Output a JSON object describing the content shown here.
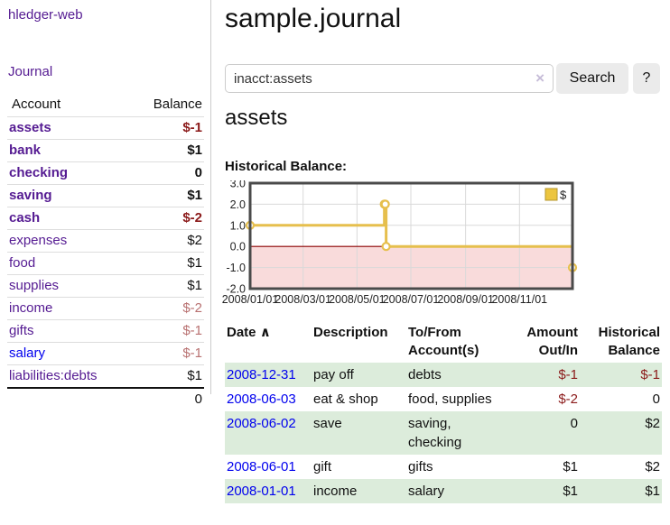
{
  "sidebar": {
    "brand": "hledger-web",
    "nav": {
      "journal": "Journal"
    },
    "accounts_table": {
      "headers": {
        "account": "Account",
        "balance": "Balance"
      },
      "rows": [
        {
          "name": "assets",
          "indent": 1,
          "bold": true,
          "balance": "$-1",
          "balance_tone": "neg-dark"
        },
        {
          "name": "bank",
          "indent": 2,
          "bold": true,
          "balance": "$1",
          "balance_tone": "normal"
        },
        {
          "name": "checking",
          "indent": 3,
          "bold": true,
          "balance": "0",
          "balance_tone": "normal"
        },
        {
          "name": "saving",
          "indent": 3,
          "bold": true,
          "balance": "$1",
          "balance_tone": "normal"
        },
        {
          "name": "cash",
          "indent": 2,
          "bold": true,
          "balance": "$-2",
          "balance_tone": "neg-dark"
        },
        {
          "name": "expenses",
          "indent": 1,
          "bold": false,
          "balance": "$2",
          "balance_tone": "normal"
        },
        {
          "name": "food",
          "indent": 2,
          "bold": false,
          "balance": "$1",
          "balance_tone": "normal"
        },
        {
          "name": "supplies",
          "indent": 2,
          "bold": false,
          "balance": "$1",
          "balance_tone": "normal"
        },
        {
          "name": "income",
          "indent": 1,
          "bold": false,
          "balance": "$-2",
          "balance_tone": "neg-light"
        },
        {
          "name": "gifts",
          "indent": 2,
          "bold": false,
          "balance": "$-1",
          "balance_tone": "neg-light"
        },
        {
          "name": "salary",
          "indent": 2,
          "bold": false,
          "balance": "$-1",
          "balance_tone": "neg-light",
          "link_tone": "blue"
        },
        {
          "name": "liabilities:debts",
          "indent": 1,
          "bold": false,
          "balance": "$1",
          "balance_tone": "normal"
        }
      ],
      "total": "0"
    }
  },
  "header": {
    "title": "sample.journal"
  },
  "search": {
    "value": "inacct:assets",
    "clear_icon": "×",
    "button": "Search",
    "help_button": "?"
  },
  "account_page": {
    "heading": "assets",
    "chart_label": "Historical Balance:"
  },
  "chart_data": {
    "type": "line",
    "subtype": "step",
    "title": "Historical Balance:",
    "x_range": [
      "2008-01-01",
      "2008-12-31"
    ],
    "ylim": [
      -2,
      3
    ],
    "yticks": [
      "3.0",
      "2.0",
      "1.0",
      "0.0",
      "-1.0",
      "-2.0"
    ],
    "xticks": [
      {
        "label": "2008/01/01",
        "date": "2008-01-01"
      },
      {
        "label": "2008/03/01",
        "date": "2008-03-01"
      },
      {
        "label": "2008/05/01",
        "date": "2008-05-01"
      },
      {
        "label": "2008/07/01",
        "date": "2008-07-01"
      },
      {
        "label": "2008/09/01",
        "date": "2008-09-01"
      },
      {
        "label": "2008/11/01",
        "date": "2008-11-01"
      }
    ],
    "series": [
      {
        "name": "$",
        "points": [
          {
            "date": "2008-01-01",
            "value": 1
          },
          {
            "date": "2008-06-01",
            "value": 2
          },
          {
            "date": "2008-06-02",
            "value": 2
          },
          {
            "date": "2008-06-03",
            "value": 0
          },
          {
            "date": "2008-12-31",
            "value": -1
          }
        ]
      }
    ],
    "legend": {
      "label": "$",
      "position": "top-right"
    },
    "grid": true,
    "colors": {
      "line": "#e6bf4d",
      "marker_fill": "#ffffff",
      "legend_fill": "#ecc53f",
      "legend_stroke": "#b5962d",
      "negative_region": "#f9dbdb",
      "zero_line": "#8b0000",
      "gridline": "#d9d9d9",
      "border": "#4a4a4a",
      "tick_text": "#222222"
    }
  },
  "register_table": {
    "headers": {
      "date": "Date",
      "sort_icon": "∧",
      "description": "Description",
      "to_from": "To/From\nAccount(s)",
      "amount": "Amount\nOut/In",
      "historical": "Historical\nBalance"
    },
    "rows": [
      {
        "date": "2008-12-31",
        "description": "pay off",
        "to_from": "debts",
        "amount": "$-1",
        "historical": "$-1"
      },
      {
        "date": "2008-06-03",
        "description": "eat & shop",
        "to_from": "food, supplies",
        "amount": "$-2",
        "historical": "0"
      },
      {
        "date": "2008-06-02",
        "description": "save",
        "to_from": "saving,\nchecking",
        "amount": "0",
        "historical": "$2"
      },
      {
        "date": "2008-06-01",
        "description": "gift",
        "to_from": "gifts",
        "amount": "$1",
        "historical": "$2"
      },
      {
        "date": "2008-01-01",
        "description": "income",
        "to_from": "salary",
        "amount": "$1",
        "historical": "$1"
      }
    ]
  },
  "colors": {
    "link_purple": "#551b92",
    "link_blue": "#0000ee",
    "negative_dark": "#8b1a1a",
    "negative_light": "#b87171",
    "row_green": "#dcecdb",
    "button_bg": "#ebebeb"
  }
}
